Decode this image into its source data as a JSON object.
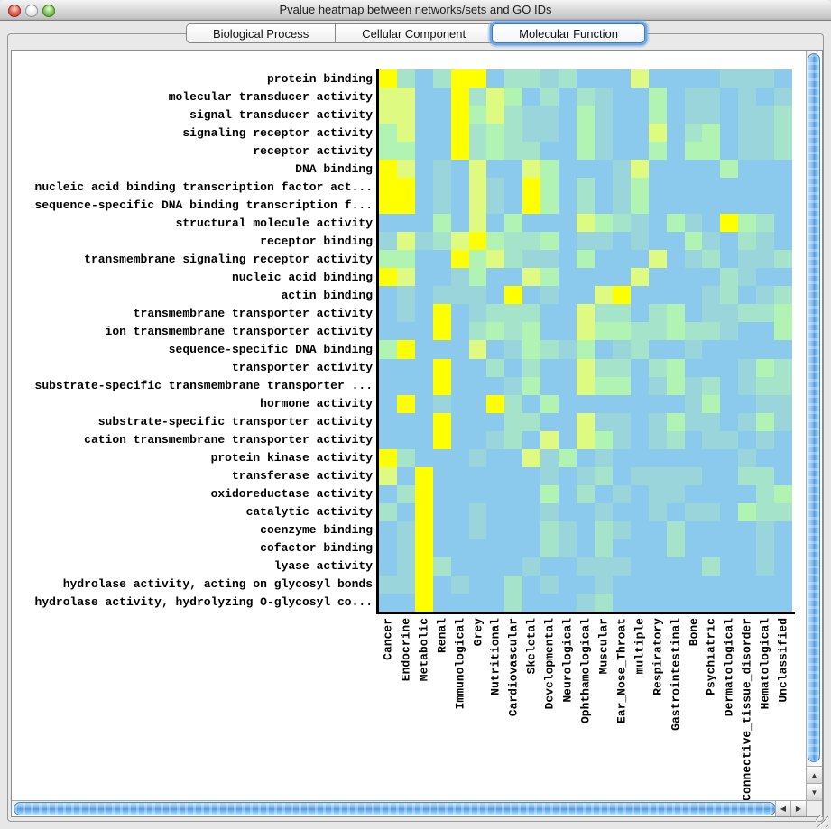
{
  "window": {
    "title": "Pvalue heatmap between networks/sets and GO IDs"
  },
  "tabs": [
    {
      "label": "Biological Process",
      "selected": false
    },
    {
      "label": "Cellular Component",
      "selected": false
    },
    {
      "label": "Molecular Function",
      "selected": true
    }
  ],
  "glyphs": {
    "up": "▲",
    "down": "▼",
    "left": "◀",
    "right": "▶"
  },
  "chart_data": {
    "type": "heatmap",
    "rows": [
      "protein binding",
      "molecular transducer activity",
      "signal transducer activity",
      "signaling receptor activity",
      "receptor activity",
      "DNA binding",
      "nucleic acid binding transcription factor act...",
      "sequence-specific DNA binding transcription f...",
      "structural molecule activity",
      "receptor binding",
      "transmembrane signaling receptor activity",
      "nucleic acid binding",
      "actin binding",
      "transmembrane transporter activity",
      "ion transmembrane transporter activity",
      "sequence-specific DNA binding",
      "transporter activity",
      "substrate-specific transmembrane transporter ...",
      "hormone activity",
      "substrate-specific transporter activity",
      "cation transmembrane transporter activity",
      "protein kinase activity",
      "transferase activity",
      "oxidoreductase activity",
      "catalytic activity",
      "coenzyme binding",
      "cofactor binding",
      "lyase activity",
      "hydrolase activity, acting on glycosyl bonds",
      "hydrolase activity, hydrolyzing O-glycosyl co..."
    ],
    "columns": [
      "Cancer",
      "Endocrine",
      "Metabolic",
      "Renal",
      "Immunological",
      "Grey",
      "Nutritional",
      "Cardiovascular",
      "Skeletal",
      "Developmental",
      "Neurological",
      "Ophthamological",
      "Muscular",
      "Ear_Nose_Throat",
      "multiple",
      "Respiratory",
      "Gastrointestinal",
      "Bone",
      "Psychiatric",
      "Dermatological",
      "Connective_tissue_disorder",
      "Hematological",
      "Unclassified"
    ],
    "palette": [
      "#8BCAEC",
      "#9AD5DC",
      "#A5E3CB",
      "#B1F3B2",
      "#DFFA81",
      "#FFFF00"
    ],
    "palette_note": "cell color level 0 = light blue through 5 = bright yellow",
    "values": [
      [
        5,
        2,
        0,
        2,
        5,
        5,
        0,
        2,
        2,
        1,
        2,
        0,
        0,
        0,
        4,
        0,
        0,
        0,
        0,
        1,
        1,
        1,
        0
      ],
      [
        4,
        4,
        0,
        0,
        5,
        2,
        4,
        3,
        0,
        2,
        0,
        2,
        1,
        0,
        0,
        3,
        0,
        1,
        1,
        0,
        1,
        0,
        1
      ],
      [
        4,
        4,
        0,
        0,
        5,
        3,
        4,
        2,
        1,
        1,
        0,
        3,
        1,
        0,
        0,
        3,
        0,
        1,
        1,
        0,
        1,
        1,
        2
      ],
      [
        3,
        4,
        0,
        0,
        5,
        2,
        3,
        2,
        1,
        1,
        0,
        3,
        1,
        0,
        0,
        4,
        0,
        2,
        3,
        0,
        1,
        1,
        2
      ],
      [
        3,
        3,
        0,
        0,
        5,
        2,
        3,
        2,
        2,
        0,
        0,
        3,
        1,
        0,
        0,
        3,
        0,
        3,
        3,
        0,
        1,
        1,
        2
      ],
      [
        5,
        4,
        0,
        1,
        0,
        4,
        0,
        0,
        4,
        3,
        0,
        0,
        0,
        1,
        4,
        0,
        0,
        0,
        0,
        3,
        0,
        0,
        0
      ],
      [
        5,
        5,
        0,
        1,
        0,
        4,
        1,
        0,
        5,
        3,
        0,
        2,
        0,
        1,
        3,
        0,
        0,
        0,
        0,
        0,
        0,
        0,
        0
      ],
      [
        5,
        5,
        0,
        1,
        0,
        4,
        1,
        0,
        5,
        3,
        0,
        2,
        0,
        1,
        3,
        0,
        0,
        0,
        0,
        0,
        0,
        0,
        0
      ],
      [
        0,
        0,
        0,
        3,
        0,
        4,
        0,
        3,
        0,
        0,
        0,
        4,
        3,
        2,
        1,
        0,
        3,
        1,
        0,
        5,
        3,
        2,
        0
      ],
      [
        1,
        4,
        1,
        2,
        4,
        5,
        3,
        2,
        2,
        3,
        0,
        1,
        1,
        0,
        1,
        0,
        0,
        3,
        1,
        0,
        2,
        1,
        0
      ],
      [
        3,
        3,
        0,
        0,
        5,
        3,
        4,
        2,
        1,
        1,
        0,
        3,
        0,
        0,
        0,
        4,
        0,
        1,
        2,
        0,
        1,
        1,
        2
      ],
      [
        5,
        4,
        0,
        0,
        1,
        3,
        0,
        0,
        4,
        3,
        0,
        0,
        0,
        0,
        4,
        0,
        0,
        0,
        0,
        2,
        1,
        0,
        0
      ],
      [
        0,
        1,
        0,
        1,
        1,
        1,
        0,
        5,
        0,
        1,
        0,
        0,
        4,
        5,
        0,
        0,
        0,
        0,
        1,
        2,
        0,
        1,
        2
      ],
      [
        0,
        1,
        0,
        5,
        0,
        1,
        2,
        2,
        2,
        0,
        0,
        4,
        2,
        2,
        0,
        2,
        3,
        0,
        1,
        1,
        2,
        2,
        3
      ],
      [
        0,
        0,
        0,
        5,
        0,
        2,
        3,
        2,
        3,
        0,
        0,
        4,
        3,
        3,
        2,
        2,
        3,
        2,
        2,
        1,
        0,
        0,
        3
      ],
      [
        3,
        5,
        0,
        0,
        0,
        4,
        0,
        1,
        3,
        2,
        1,
        3,
        0,
        1,
        2,
        0,
        0,
        1,
        0,
        0,
        0,
        0,
        0
      ],
      [
        0,
        0,
        0,
        5,
        0,
        0,
        2,
        0,
        2,
        0,
        0,
        4,
        2,
        2,
        0,
        2,
        3,
        0,
        0,
        0,
        1,
        3,
        2
      ],
      [
        0,
        0,
        0,
        5,
        0,
        0,
        0,
        1,
        3,
        0,
        0,
        4,
        3,
        3,
        0,
        1,
        3,
        1,
        2,
        0,
        1,
        2,
        2
      ],
      [
        0,
        5,
        0,
        1,
        0,
        0,
        5,
        2,
        0,
        3,
        0,
        0,
        0,
        0,
        0,
        0,
        0,
        1,
        3,
        0,
        0,
        1,
        1
      ],
      [
        0,
        0,
        0,
        5,
        0,
        0,
        0,
        2,
        2,
        0,
        0,
        4,
        1,
        1,
        0,
        1,
        3,
        1,
        1,
        0,
        1,
        3,
        1
      ],
      [
        0,
        0,
        0,
        5,
        0,
        0,
        1,
        2,
        0,
        4,
        0,
        4,
        3,
        1,
        0,
        1,
        2,
        0,
        1,
        1,
        0,
        1,
        0
      ],
      [
        5,
        2,
        0,
        0,
        0,
        1,
        0,
        0,
        4,
        1,
        3,
        0,
        1,
        0,
        0,
        0,
        0,
        0,
        0,
        0,
        1,
        0,
        0
      ],
      [
        4,
        0,
        5,
        0,
        0,
        0,
        0,
        0,
        0,
        1,
        0,
        1,
        2,
        0,
        1,
        1,
        1,
        1,
        0,
        0,
        2,
        2,
        0
      ],
      [
        0,
        2,
        5,
        0,
        0,
        0,
        0,
        0,
        0,
        3,
        0,
        2,
        0,
        1,
        0,
        1,
        1,
        0,
        0,
        0,
        0,
        2,
        3
      ],
      [
        2,
        0,
        5,
        0,
        0,
        1,
        0,
        0,
        0,
        1,
        0,
        0,
        1,
        0,
        0,
        1,
        0,
        1,
        1,
        0,
        3,
        2,
        2
      ],
      [
        0,
        1,
        5,
        0,
        0,
        1,
        0,
        0,
        0,
        2,
        1,
        0,
        2,
        1,
        0,
        0,
        2,
        0,
        0,
        0,
        0,
        1,
        0
      ],
      [
        0,
        1,
        5,
        0,
        0,
        0,
        0,
        0,
        0,
        2,
        1,
        0,
        2,
        0,
        0,
        0,
        2,
        0,
        0,
        0,
        0,
        1,
        0
      ],
      [
        0,
        1,
        5,
        2,
        0,
        0,
        0,
        0,
        1,
        0,
        0,
        1,
        1,
        1,
        0,
        0,
        0,
        0,
        2,
        0,
        0,
        1,
        0
      ],
      [
        1,
        1,
        5,
        0,
        1,
        0,
        0,
        2,
        0,
        1,
        0,
        0,
        1,
        0,
        0,
        0,
        0,
        0,
        0,
        0,
        0,
        0,
        0
      ],
      [
        0,
        0,
        5,
        0,
        0,
        0,
        0,
        2,
        0,
        0,
        0,
        1,
        2,
        0,
        0,
        0,
        0,
        0,
        0,
        0,
        0,
        0,
        0
      ]
    ]
  }
}
